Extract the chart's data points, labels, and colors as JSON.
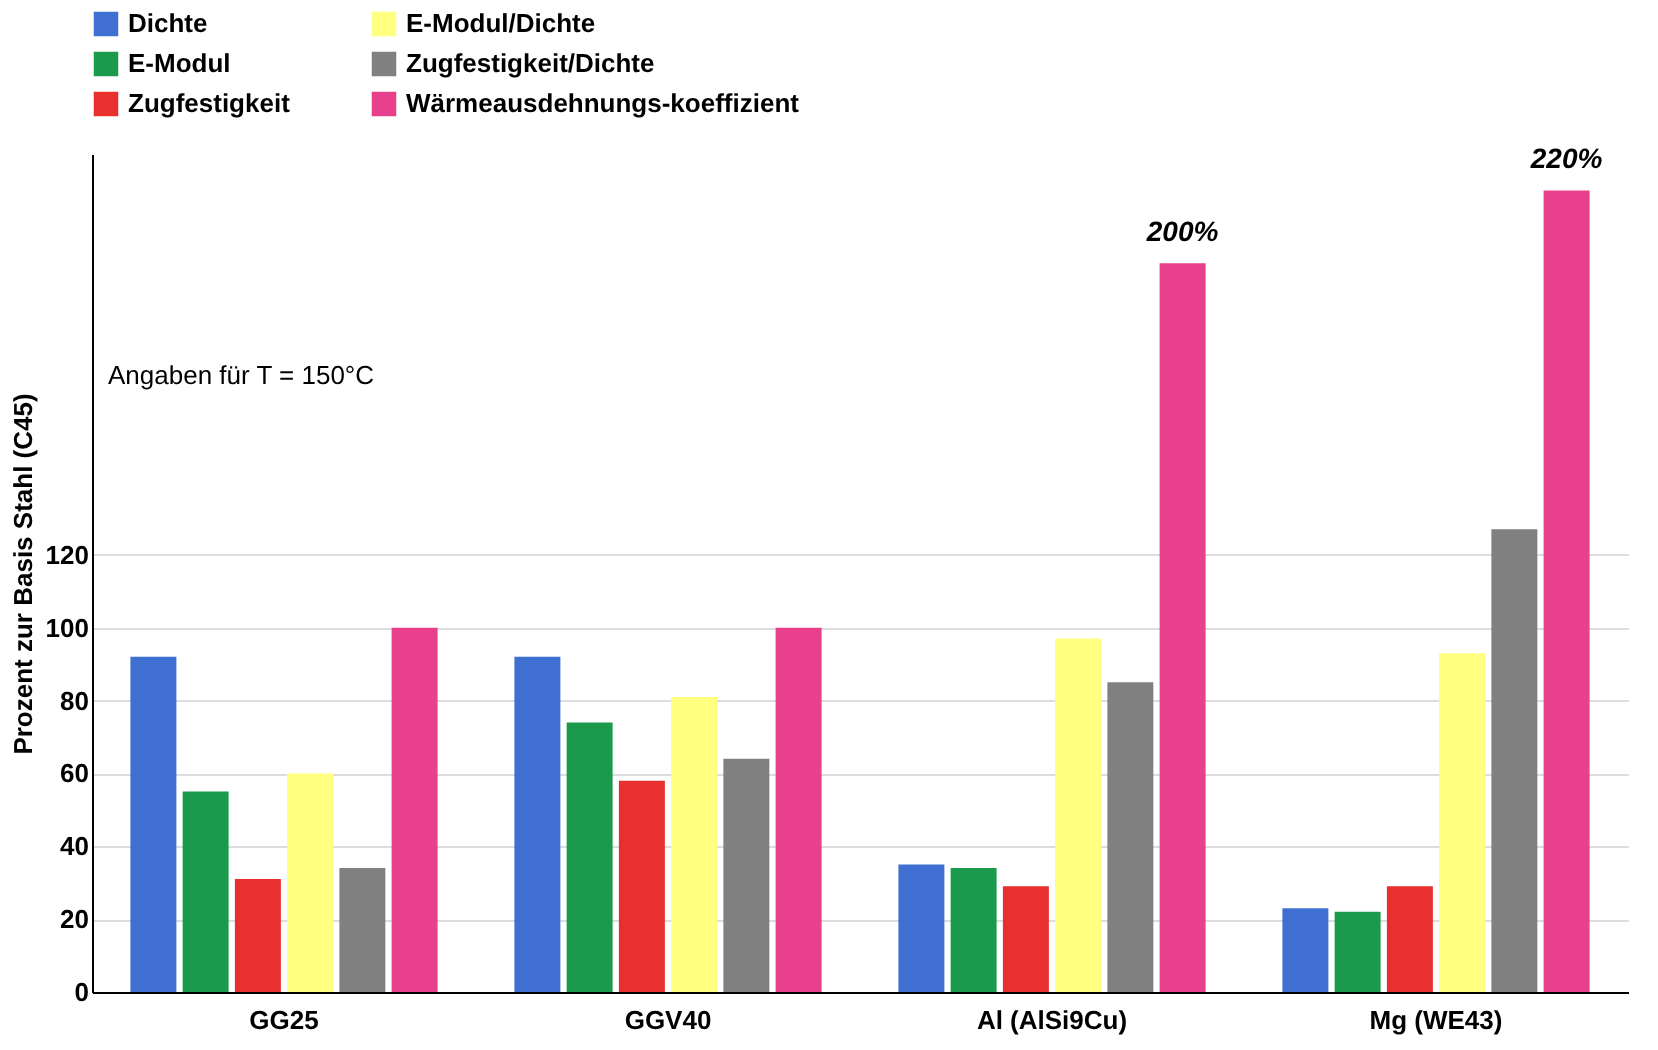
{
  "chart_data": {
    "type": "bar",
    "categories": [
      "GG25",
      "GGV40",
      "Al (AlSi9Cu)",
      "Mg (WE43)"
    ],
    "series": [
      {
        "name": "Dichte",
        "color": "#3f6fd0",
        "values": [
          92,
          92,
          35,
          23
        ]
      },
      {
        "name": "E-Modul",
        "color": "#1a9a4a",
        "values": [
          55,
          74,
          34,
          22
        ]
      },
      {
        "name": "Zugfestigkeit",
        "color": "#e8312f",
        "values": [
          31,
          58,
          29,
          29
        ]
      },
      {
        "name": "E-Modul/Dichte",
        "color": "#ffff80",
        "values": [
          60,
          81,
          97,
          93
        ]
      },
      {
        "name": "Zugfestigkeit/Dichte",
        "color": "#808080",
        "values": [
          34,
          64,
          85,
          127
        ]
      },
      {
        "name": "Wärmeausdehnungs-koeffizient",
        "color": "#e8408c",
        "values": [
          100,
          100,
          200,
          220
        ],
        "value_labels": [
          null,
          null,
          "200%",
          "220%"
        ]
      }
    ],
    "ylabel": "Prozent zur Basis Stahl (C45)",
    "ylim": [
      0,
      230
    ],
    "yticks": [
      0,
      20,
      40,
      60,
      80,
      100,
      120
    ],
    "grid": "y",
    "legend": "top",
    "annotations": [
      "Angaben für T = 150°C"
    ]
  }
}
